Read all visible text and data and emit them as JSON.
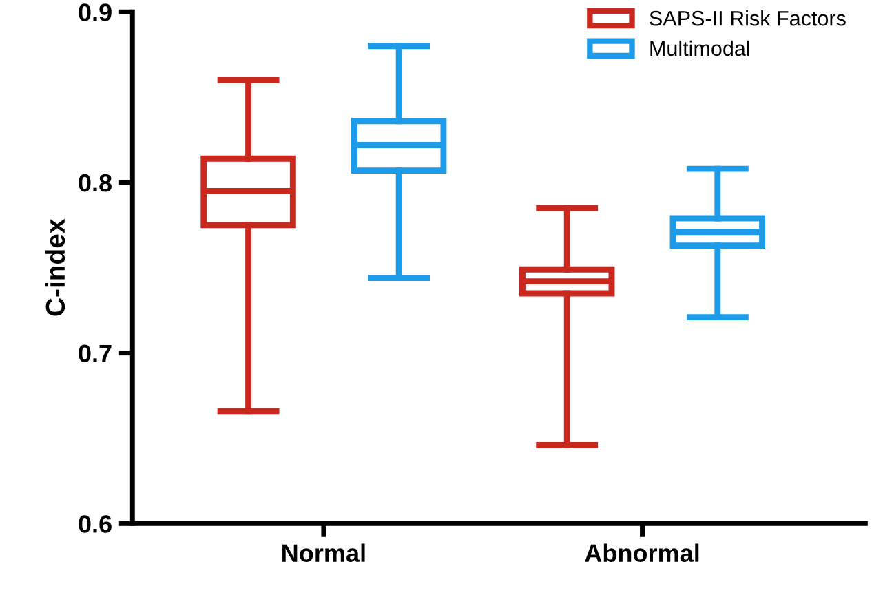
{
  "chart_data": {
    "type": "box",
    "ylabel": "C-index",
    "categories": [
      "Normal",
      "Abnormal"
    ],
    "series": [
      {
        "name": "SAPS-II Risk Factors",
        "color": "#c8281e",
        "boxes": [
          {
            "low": 0.666,
            "q1": 0.775,
            "median": 0.795,
            "q3": 0.814,
            "high": 0.86
          },
          {
            "low": 0.646,
            "q1": 0.735,
            "median": 0.742,
            "q3": 0.749,
            "high": 0.785
          }
        ]
      },
      {
        "name": "Multimodal",
        "color": "#1e9be8",
        "boxes": [
          {
            "low": 0.744,
            "q1": 0.807,
            "median": 0.822,
            "q3": 0.836,
            "high": 0.88
          },
          {
            "low": 0.721,
            "q1": 0.763,
            "median": 0.771,
            "q3": 0.779,
            "high": 0.808
          }
        ]
      }
    ],
    "ylim": [
      0.6,
      0.9
    ],
    "yticks": [
      0.6,
      0.7,
      0.8,
      0.9
    ],
    "grid": false,
    "legend": "top right"
  }
}
